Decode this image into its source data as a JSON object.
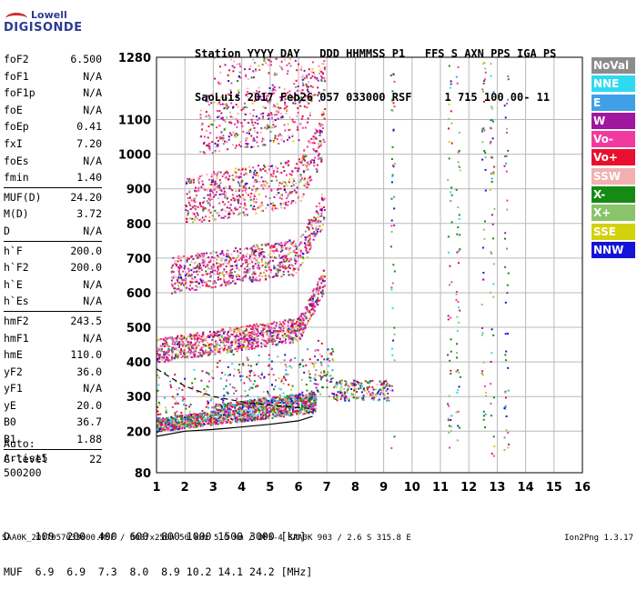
{
  "logo": {
    "line1": "Lowell",
    "line2": "DIGISONDE"
  },
  "header": {
    "line1": "Station YYYY DAY   DDD HHMMSS P1   FFS S AXN PPS IGA PS",
    "line2": "SaoLuis 2017 Feb26 057 033000 RSF     1 715 100 00- 11"
  },
  "params_group1": [
    {
      "name": "foF2",
      "value": "6.500"
    },
    {
      "name": "foF1",
      "value": "N/A"
    },
    {
      "name": "foF1p",
      "value": "N/A"
    },
    {
      "name": "foE",
      "value": "N/A"
    },
    {
      "name": "foEp",
      "value": "0.41"
    },
    {
      "name": "fxI",
      "value": "7.20"
    },
    {
      "name": "foEs",
      "value": "N/A"
    },
    {
      "name": "fmin",
      "value": "1.40"
    }
  ],
  "params_group2": [
    {
      "name": "MUF(D)",
      "value": "24.20"
    },
    {
      "name": "M(D)",
      "value": "3.72"
    },
    {
      "name": "D",
      "value": "N/A"
    }
  ],
  "params_group3": [
    {
      "name": "h`F",
      "value": "200.0"
    },
    {
      "name": "h`F2",
      "value": "200.0"
    },
    {
      "name": "h`E",
      "value": "N/A"
    },
    {
      "name": "h`Es",
      "value": "N/A"
    }
  ],
  "params_group4": [
    {
      "name": "hmF2",
      "value": "243.5"
    },
    {
      "name": "hmF1",
      "value": "N/A"
    },
    {
      "name": "hmE",
      "value": "110.0"
    },
    {
      "name": "yF2",
      "value": "36.0"
    },
    {
      "name": "yF1",
      "value": "N/A"
    },
    {
      "name": "yE",
      "value": "20.0"
    },
    {
      "name": "B0",
      "value": "36.7"
    },
    {
      "name": "B1",
      "value": "1.88"
    }
  ],
  "params_group5": [
    {
      "name": "C-level",
      "value": "22"
    }
  ],
  "auto": {
    "line1": "Auto:",
    "line2": "Artist5",
    "line3": "500200"
  },
  "legend": [
    {
      "label": "NoVal",
      "color": "#8c8c8c"
    },
    {
      "label": "NNE",
      "color": "#2fd9f2"
    },
    {
      "label": "E",
      "color": "#3fa0e8"
    },
    {
      "label": "W",
      "color": "#a0169e"
    },
    {
      "label": "Vo-",
      "color": "#f03aa0"
    },
    {
      "label": "Vo+",
      "color": "#e8102e"
    },
    {
      "label": "SSW",
      "color": "#f2b0b0"
    },
    {
      "label": "X-",
      "color": "#158a15"
    },
    {
      "label": "X+",
      "color": "#8ac46a"
    },
    {
      "label": "SSE",
      "color": "#d2d20c"
    },
    {
      "label": "NNW",
      "color": "#1414d8"
    }
  ],
  "muf_table": {
    "line1": "D    100  200  400  600  800 1000 1500 3000 [km]",
    "line2": "MUF  6.9  6.9  7.3  8.0  8.9 10.2 14.1 24.2 [MHz]"
  },
  "footer": {
    "left": "SAA0K_2017057033000.RSF / 300fx256h 50 kHz 5.0 km / DPS-4 SAA0K 903 / 2.6 S 315.8 E",
    "right": "Ion2Png 1.3.17"
  },
  "chart_data": {
    "type": "scatter",
    "xlim": [
      1,
      16
    ],
    "ylim": [
      80,
      1280
    ],
    "x_ticks": [
      1,
      2,
      3,
      4,
      5,
      6,
      7,
      8,
      9,
      10,
      11,
      12,
      13,
      14,
      15,
      16
    ],
    "y_ticks": [
      80,
      200,
      300,
      400,
      500,
      600,
      700,
      800,
      900,
      1000,
      1100,
      1280
    ],
    "xlabel": "",
    "ylabel": "",
    "grid": true,
    "legend_placement": "right",
    "trace_profile": {
      "x": [
        1.0,
        2.0,
        3.0,
        4.0,
        5.0,
        6.0,
        6.5
      ],
      "y": [
        185,
        200,
        205,
        212,
        220,
        230,
        243
      ]
    },
    "profile_curve": {
      "x": [
        1.0,
        1.5,
        2.0,
        3.0,
        4.0,
        5.0,
        6.0,
        6.5
      ],
      "y": [
        380,
        355,
        330,
        300,
        285,
        275,
        268,
        265
      ]
    }
  }
}
